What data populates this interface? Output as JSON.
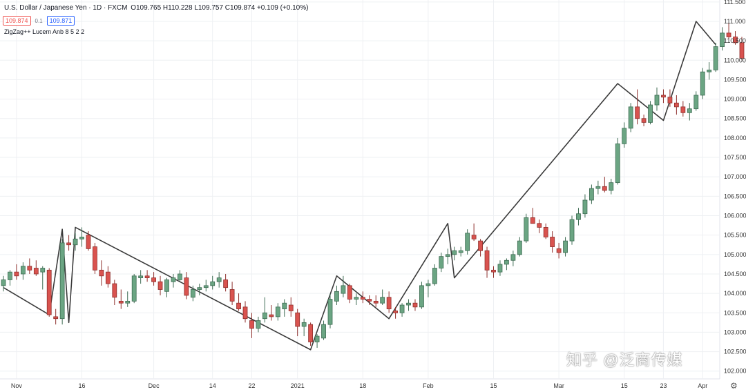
{
  "header": {
    "symbol": "U.S. Dollar / Japanese Yen · 1D · FXCM",
    "ohlc": "O109.765 H110.228 L109.757 C109.874 +0.109 (+0.10%)",
    "sell_price": "109.874",
    "spread": "0.1",
    "buy_price": "109.871",
    "indicator": "ZigZag++ Lucem Anb 8 5 2 2"
  },
  "watermark": "知乎 @泛商传媒",
  "colors": {
    "up": "#6ba583",
    "up_border": "#3d6b52",
    "down": "#d9534f",
    "down_border": "#8e2f2c",
    "zigzag": "#3a3a3a",
    "grid": "#eef0f3",
    "axis_text": "#333333"
  },
  "chart_data": {
    "type": "candlestick",
    "title": "",
    "ylim": [
      101.8,
      111.55
    ],
    "y_ticks": [
      "111.500",
      "111.000",
      "110.500",
      "110.000",
      "109.500",
      "109.000",
      "108.500",
      "108.000",
      "107.500",
      "107.000",
      "106.500",
      "106.000",
      "105.500",
      "105.000",
      "104.500",
      "104.000",
      "103.500",
      "103.000",
      "102.500",
      "102.000"
    ],
    "x_ticks": [
      {
        "label": "Nov",
        "index": 2
      },
      {
        "label": "16",
        "index": 12
      },
      {
        "label": "Dec",
        "index": 23
      },
      {
        "label": "14",
        "index": 32
      },
      {
        "label": "22",
        "index": 38
      },
      {
        "label": "2021",
        "index": 45
      },
      {
        "label": "18",
        "index": 55
      },
      {
        "label": "Feb",
        "index": 65
      },
      {
        "label": "15",
        "index": 75
      },
      {
        "label": "Mar",
        "index": 85
      },
      {
        "label": "15",
        "index": 95
      },
      {
        "label": "23",
        "index": 101
      },
      {
        "label": "Apr",
        "index": 107
      }
    ],
    "candles": [
      [
        104.2,
        104.45,
        104.05,
        104.35
      ],
      [
        104.35,
        104.6,
        104.2,
        104.55
      ],
      [
        104.55,
        104.75,
        104.35,
        104.45
      ],
      [
        104.5,
        104.8,
        104.35,
        104.7
      ],
      [
        104.7,
        104.9,
        104.5,
        104.6
      ],
      [
        104.65,
        104.85,
        104.45,
        104.5
      ],
      [
        104.55,
        104.7,
        104.1,
        104.65
      ],
      [
        104.6,
        104.65,
        103.4,
        103.45
      ],
      [
        103.4,
        103.6,
        103.2,
        103.35
      ],
      [
        103.35,
        105.4,
        103.2,
        105.3
      ],
      [
        105.3,
        105.5,
        105.1,
        105.25
      ],
      [
        105.25,
        105.55,
        105.1,
        105.4
      ],
      [
        105.4,
        105.7,
        105.2,
        105.45
      ],
      [
        105.5,
        105.6,
        105.1,
        105.15
      ],
      [
        105.2,
        105.3,
        104.5,
        104.6
      ],
      [
        104.6,
        104.85,
        104.2,
        104.45
      ],
      [
        104.55,
        104.7,
        104.15,
        104.25
      ],
      [
        104.25,
        104.35,
        103.7,
        103.9
      ],
      [
        103.8,
        104.1,
        103.6,
        103.75
      ],
      [
        103.75,
        104.05,
        103.65,
        103.8
      ],
      [
        103.8,
        104.5,
        103.75,
        104.45
      ],
      [
        104.4,
        104.6,
        104.25,
        104.45
      ],
      [
        104.45,
        104.6,
        104.3,
        104.4
      ],
      [
        104.4,
        104.55,
        104.2,
        104.3
      ],
      [
        104.3,
        104.45,
        103.95,
        104.1
      ],
      [
        104.05,
        104.4,
        103.9,
        104.35
      ],
      [
        104.3,
        104.5,
        104.15,
        104.4
      ],
      [
        104.35,
        104.6,
        104.3,
        104.5
      ],
      [
        104.4,
        104.55,
        103.85,
        103.95
      ],
      [
        103.9,
        104.2,
        103.8,
        104.1
      ],
      [
        104.1,
        104.25,
        103.95,
        104.15
      ],
      [
        104.15,
        104.35,
        104.05,
        104.2
      ],
      [
        104.2,
        104.45,
        104.1,
        104.3
      ],
      [
        104.3,
        104.55,
        104.15,
        104.4
      ],
      [
        104.35,
        104.5,
        104.05,
        104.15
      ],
      [
        104.1,
        104.3,
        103.7,
        103.8
      ],
      [
        103.75,
        104.0,
        103.55,
        103.6
      ],
      [
        103.65,
        103.8,
        103.25,
        103.35
      ],
      [
        103.3,
        103.5,
        102.85,
        103.1
      ],
      [
        103.1,
        103.4,
        103.0,
        103.3
      ],
      [
        103.35,
        103.9,
        103.25,
        103.5
      ],
      [
        103.45,
        103.7,
        103.3,
        103.4
      ],
      [
        103.4,
        103.75,
        103.3,
        103.65
      ],
      [
        103.6,
        103.85,
        103.4,
        103.75
      ],
      [
        103.7,
        103.9,
        103.4,
        103.55
      ],
      [
        103.5,
        103.6,
        102.9,
        103.15
      ],
      [
        103.15,
        103.35,
        102.9,
        103.25
      ],
      [
        103.2,
        103.25,
        102.65,
        102.75
      ],
      [
        102.75,
        102.95,
        102.6,
        102.9
      ],
      [
        102.85,
        103.3,
        102.8,
        103.2
      ],
      [
        103.2,
        104.0,
        103.1,
        103.85
      ],
      [
        103.8,
        104.2,
        103.7,
        104.05
      ],
      [
        104.0,
        104.45,
        103.9,
        104.2
      ],
      [
        104.2,
        104.25,
        103.75,
        103.85
      ],
      [
        103.85,
        104.0,
        103.7,
        103.9
      ],
      [
        103.9,
        104.05,
        103.75,
        103.85
      ],
      [
        103.85,
        103.95,
        103.7,
        103.8
      ],
      [
        103.8,
        103.95,
        103.65,
        103.75
      ],
      [
        103.75,
        104.1,
        103.7,
        103.9
      ],
      [
        103.9,
        104.05,
        103.5,
        103.6
      ],
      [
        103.55,
        103.65,
        103.35,
        103.5
      ],
      [
        103.5,
        103.75,
        103.4,
        103.7
      ],
      [
        103.7,
        103.85,
        103.55,
        103.75
      ],
      [
        103.75,
        103.85,
        103.55,
        103.65
      ],
      [
        103.65,
        104.3,
        103.6,
        104.2
      ],
      [
        104.2,
        104.35,
        103.9,
        104.25
      ],
      [
        104.25,
        104.75,
        104.2,
        104.65
      ],
      [
        104.65,
        105.05,
        104.55,
        104.95
      ],
      [
        104.95,
        105.15,
        104.75,
        105.0
      ],
      [
        105.0,
        105.2,
        104.85,
        105.1
      ],
      [
        105.05,
        105.2,
        104.95,
        105.1
      ],
      [
        105.1,
        105.65,
        105.0,
        105.55
      ],
      [
        105.5,
        105.8,
        105.35,
        105.4
      ],
      [
        105.35,
        105.4,
        104.95,
        105.1
      ],
      [
        105.1,
        105.2,
        104.4,
        104.6
      ],
      [
        104.6,
        104.7,
        104.4,
        104.55
      ],
      [
        104.55,
        104.85,
        104.45,
        104.75
      ],
      [
        104.75,
        104.9,
        104.6,
        104.85
      ],
      [
        104.85,
        105.1,
        104.7,
        105.0
      ],
      [
        105.0,
        105.45,
        104.95,
        105.35
      ],
      [
        105.35,
        106.05,
        105.3,
        105.95
      ],
      [
        105.95,
        106.2,
        105.85,
        105.8
      ],
      [
        105.8,
        105.9,
        105.55,
        105.7
      ],
      [
        105.7,
        105.8,
        105.4,
        105.45
      ],
      [
        105.45,
        105.6,
        105.05,
        105.2
      ],
      [
        105.15,
        105.3,
        104.9,
        105.05
      ],
      [
        105.05,
        105.45,
        104.95,
        105.35
      ],
      [
        105.35,
        106.0,
        105.25,
        105.9
      ],
      [
        105.9,
        106.2,
        105.75,
        106.05
      ],
      [
        106.05,
        106.55,
        105.95,
        106.4
      ],
      [
        106.4,
        106.8,
        106.3,
        106.7
      ],
      [
        106.7,
        106.9,
        106.55,
        106.75
      ],
      [
        106.75,
        107.0,
        106.6,
        106.65
      ],
      [
        106.65,
        106.95,
        106.55,
        106.85
      ],
      [
        106.85,
        108.0,
        106.8,
        107.85
      ],
      [
        107.85,
        108.4,
        107.75,
        108.25
      ],
      [
        108.25,
        108.9,
        108.15,
        108.8
      ],
      [
        108.8,
        109.25,
        108.35,
        108.5
      ],
      [
        108.5,
        108.6,
        108.3,
        108.4
      ],
      [
        108.4,
        108.95,
        108.35,
        108.85
      ],
      [
        108.85,
        109.3,
        108.7,
        109.1
      ],
      [
        109.1,
        109.25,
        108.9,
        109.05
      ],
      [
        109.05,
        109.25,
        108.8,
        108.9
      ],
      [
        108.9,
        109.1,
        108.6,
        108.8
      ],
      [
        108.8,
        108.95,
        108.55,
        108.65
      ],
      [
        108.65,
        108.9,
        108.45,
        108.75
      ],
      [
        108.75,
        109.2,
        108.7,
        109.1
      ],
      [
        109.1,
        109.8,
        109.0,
        109.7
      ],
      [
        109.7,
        109.95,
        109.5,
        109.75
      ],
      [
        109.75,
        110.45,
        109.7,
        110.35
      ],
      [
        110.35,
        110.85,
        110.25,
        110.7
      ],
      [
        110.7,
        110.95,
        110.55,
        110.6
      ],
      [
        110.6,
        110.75,
        110.4,
        110.45
      ],
      [
        110.45,
        110.6,
        110.0,
        110.05
      ]
    ],
    "zigzag_points": [
      [
        0,
        104.15
      ],
      [
        7,
        103.45
      ],
      [
        9,
        105.65
      ],
      [
        10,
        103.25
      ],
      [
        11,
        105.7
      ],
      [
        47,
        102.55
      ],
      [
        51,
        104.45
      ],
      [
        59,
        103.35
      ],
      [
        68,
        105.8
      ],
      [
        69,
        104.4
      ],
      [
        94,
        109.4
      ],
      [
        101,
        108.45
      ],
      [
        106,
        111.0
      ],
      [
        109,
        110.4
      ]
    ]
  }
}
